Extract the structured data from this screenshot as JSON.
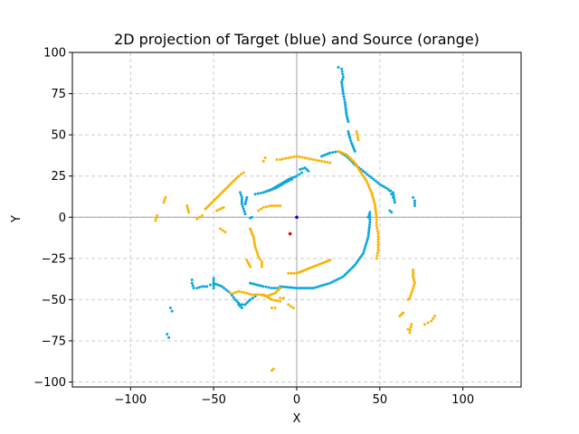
{
  "chart_data": {
    "type": "scatter",
    "title": "2D projection of Target (blue) and Source (orange)",
    "xlabel": "X",
    "ylabel": "Y",
    "xlim": [
      -135,
      135
    ],
    "ylim": [
      -103,
      100
    ],
    "x_ticks": [
      -100,
      -50,
      0,
      50,
      100
    ],
    "y_ticks": [
      -100,
      -75,
      -50,
      -25,
      0,
      25,
      50,
      75,
      100
    ],
    "grid": true,
    "grid_style": "dashed",
    "reference_lines": {
      "x": 0,
      "y": 0
    },
    "colors": {
      "target": "#0aa6e0",
      "source": "#fbb202",
      "origin_marker": "#0000cc",
      "source_center_marker": "#dd0000",
      "grid": "#cccccc",
      "reference_line": "#a0a0a0"
    },
    "markers": [
      {
        "x": 0,
        "y": 0,
        "color": "#0000cc"
      },
      {
        "x": -4,
        "y": -10,
        "color": "#dd0000"
      }
    ],
    "series": [
      {
        "color": "#0aa6e0",
        "segments": [
          [
            [
              -10,
              -42
            ],
            [
              0,
              -43
            ],
            [
              10,
              -43
            ],
            [
              20,
              -40
            ],
            [
              28,
              -36
            ],
            [
              35,
              -29
            ],
            [
              40,
              -22
            ],
            [
              43,
              -12
            ],
            [
              44,
              -3
            ],
            [
              44,
              3
            ],
            [
              43,
              0
            ]
          ],
          [
            [
              -28,
              -40
            ],
            [
              -24,
              -41
            ],
            [
              -20,
              -42
            ],
            [
              -15,
              -43
            ],
            [
              -10,
              -43
            ]
          ],
          [
            [
              -50,
              -40
            ],
            [
              -45,
              -42
            ],
            [
              -40,
              -46
            ],
            [
              -37,
              -50
            ],
            [
              -34,
              -53
            ],
            [
              -31,
              -53
            ],
            [
              -28,
              -50
            ],
            [
              -25,
              -48
            ]
          ],
          [
            [
              -35,
              -53
            ],
            [
              -33,
              -55
            ]
          ],
          [
            [
              -63,
              -38
            ],
            [
              -63,
              -40
            ],
            [
              -62,
              -43
            ]
          ],
          [
            [
              -60,
              -43
            ],
            [
              -57,
              -42
            ],
            [
              -54,
              -42
            ],
            [
              -52,
              -41
            ]
          ],
          [
            [
              -50,
              -43
            ],
            [
              -50,
              -37
            ]
          ],
          [
            [
              -76,
              -55
            ],
            [
              -75,
              -57
            ]
          ],
          [
            [
              -78,
              -71
            ],
            [
              -77,
              -73
            ]
          ],
          [
            [
              -34,
              15
            ],
            [
              -33,
              12
            ],
            [
              -33,
              8
            ],
            [
              -32,
              5
            ],
            [
              -31,
              2
            ]
          ],
          [
            [
              -28,
              -0.5
            ],
            [
              -27,
              0
            ]
          ],
          [
            [
              -30,
              12
            ],
            [
              -31,
              8
            ]
          ],
          [
            [
              -25,
              14
            ],
            [
              -20,
              15
            ],
            [
              -15,
              17
            ],
            [
              -10,
              20
            ],
            [
              -5,
              23
            ],
            [
              0,
              25
            ],
            [
              3,
              27
            ]
          ],
          [
            [
              -17,
              16
            ],
            [
              -12,
              18
            ],
            [
              -7,
              21
            ],
            [
              -3,
              23
            ]
          ],
          [
            [
              2,
              29
            ],
            [
              5,
              30
            ],
            [
              7,
              28
            ]
          ],
          [
            [
              35,
              32
            ],
            [
              40,
              28
            ],
            [
              45,
              24
            ],
            [
              50,
              20
            ],
            [
              55,
              17
            ],
            [
              58,
              15
            ],
            [
              59,
              9
            ]
          ],
          [
            [
              15,
              37
            ],
            [
              20,
              39
            ],
            [
              25,
              40
            ],
            [
              30,
              37
            ],
            [
              35,
              32
            ]
          ],
          [
            [
              56,
              16
            ],
            [
              57,
              14
            ],
            [
              58,
              12
            ]
          ],
          [
            [
              56,
              4
            ],
            [
              57,
              3
            ]
          ],
          [
            [
              70,
              12
            ],
            [
              71,
              10
            ],
            [
              71,
              7
            ]
          ],
          [
            [
              25,
              91
            ],
            [
              27,
              90
            ],
            [
              28,
              85
            ],
            [
              27,
              82
            ],
            [
              28,
              75
            ],
            [
              29,
              70
            ],
            [
              30,
              62
            ],
            [
              31,
              58
            ]
          ],
          [
            [
              31,
              52
            ],
            [
              32,
              48
            ],
            [
              33,
              45
            ],
            [
              35,
              40
            ]
          ]
        ]
      },
      {
        "color": "#fbb202",
        "segments": [
          [
            [
              -55,
              5
            ],
            [
              -50,
              10
            ],
            [
              -45,
              15
            ],
            [
              -40,
              20
            ],
            [
              -35,
              25
            ],
            [
              -32,
              27
            ]
          ],
          [
            [
              -48,
              4
            ],
            [
              -44,
              6
            ]
          ],
          [
            [
              -60,
              -1
            ],
            [
              -57,
              1
            ]
          ],
          [
            [
              -66,
              7
            ],
            [
              -65,
              3
            ]
          ],
          [
            [
              -46,
              -7
            ],
            [
              -43,
              -9
            ]
          ],
          [
            [
              -85,
              -2
            ],
            [
              -84,
              1
            ]
          ],
          [
            [
              -80,
              9
            ],
            [
              -79,
              12
            ]
          ],
          [
            [
              -28,
              -7
            ],
            [
              -26,
              -12
            ],
            [
              -25,
              -18
            ],
            [
              -23,
              -24
            ],
            [
              -21,
              -27
            ],
            [
              -21,
              -30
            ]
          ],
          [
            [
              -30,
              -26
            ],
            [
              -28,
              -30
            ]
          ],
          [
            [
              -23,
              4
            ],
            [
              -20,
              6
            ],
            [
              -15,
              7
            ],
            [
              -10,
              7
            ]
          ],
          [
            [
              -12,
              35
            ],
            [
              -10,
              35
            ],
            [
              -5,
              36
            ],
            [
              0,
              37
            ],
            [
              5,
              36
            ],
            [
              10,
              35
            ],
            [
              15,
              34
            ],
            [
              20,
              33
            ]
          ],
          [
            [
              -20,
              34
            ],
            [
              -19,
              36
            ]
          ],
          [
            [
              25,
              40
            ],
            [
              30,
              38
            ],
            [
              35,
              33
            ],
            [
              38,
              28
            ],
            [
              42,
              22
            ],
            [
              45,
              15
            ],
            [
              47,
              8
            ],
            [
              48,
              0
            ],
            [
              48,
              -5
            ],
            [
              49,
              -10
            ],
            [
              49,
              -15
            ],
            [
              49,
              -20
            ],
            [
              48,
              -25
            ]
          ],
          [
            [
              36,
              52
            ],
            [
              37,
              47
            ]
          ],
          [
            [
              -5,
              -34
            ],
            [
              0,
              -34
            ],
            [
              5,
              -32
            ],
            [
              10,
              -30
            ],
            [
              15,
              -28
            ],
            [
              20,
              -26
            ]
          ],
          [
            [
              -10,
              -43
            ],
            [
              -13,
              -46
            ],
            [
              -18,
              -48
            ],
            [
              -22,
              -47
            ],
            [
              -27,
              -47
            ],
            [
              -30,
              -46
            ],
            [
              -35,
              -45
            ],
            [
              -38,
              -46
            ],
            [
              -40,
              -46
            ]
          ],
          [
            [
              -20,
              -47
            ],
            [
              -15,
              -50
            ],
            [
              -10,
              -51
            ]
          ],
          [
            [
              -10,
              -49
            ],
            [
              -8,
              -49
            ]
          ],
          [
            [
              -5,
              -53
            ],
            [
              -2,
              -55
            ]
          ],
          [
            [
              -15,
              -55
            ],
            [
              -13,
              -55
            ]
          ],
          [
            [
              70,
              -32
            ],
            [
              70,
              -36
            ],
            [
              71,
              -40
            ],
            [
              70,
              -43
            ],
            [
              69,
              -46
            ],
            [
              68,
              -49
            ],
            [
              67,
              -50
            ]
          ],
          [
            [
              62,
              -60
            ],
            [
              64,
              -58
            ]
          ],
          [
            [
              67,
              -68
            ],
            [
              68,
              -70
            ],
            [
              69,
              -65
            ]
          ],
          [
            [
              81,
              -63
            ],
            [
              83,
              -60
            ]
          ],
          [
            [
              77,
              -65
            ],
            [
              79,
              -64
            ]
          ],
          [
            [
              -15,
              -93
            ],
            [
              -14,
              -92
            ]
          ]
        ]
      }
    ]
  }
}
